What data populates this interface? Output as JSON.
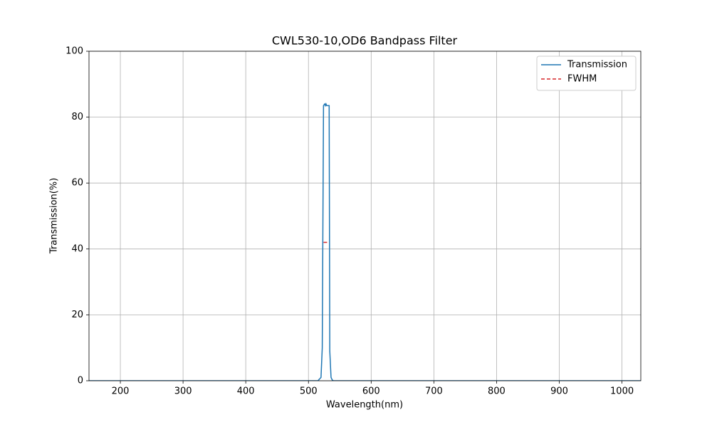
{
  "chart_data": {
    "type": "line",
    "title": "CWL530-10,OD6 Bandpass Filter",
    "xlabel": "Wavelength(nm)",
    "ylabel": "Transmission(%)",
    "xlim": [
      150,
      1030
    ],
    "ylim": [
      0,
      100
    ],
    "xticks": [
      200,
      300,
      400,
      500,
      600,
      700,
      800,
      900,
      1000
    ],
    "yticks": [
      0,
      20,
      40,
      60,
      80,
      100
    ],
    "grid": true,
    "legend": "upper-right",
    "series": [
      {
        "name": "Transmission",
        "color": "#1f77b4",
        "dash": false,
        "x": [
          150,
          515,
          520,
          522,
          524,
          526,
          527,
          528,
          529,
          533,
          534,
          536,
          538,
          540,
          1030
        ],
        "values": [
          0,
          0,
          1,
          10,
          83.5,
          84,
          83.5,
          84,
          83.5,
          83.5,
          9,
          1,
          0.2,
          0,
          0
        ]
      },
      {
        "name": "FWHM",
        "color": "#d62728",
        "dash": true,
        "x": [
          524,
          532
        ],
        "values": [
          42,
          42
        ]
      }
    ]
  }
}
